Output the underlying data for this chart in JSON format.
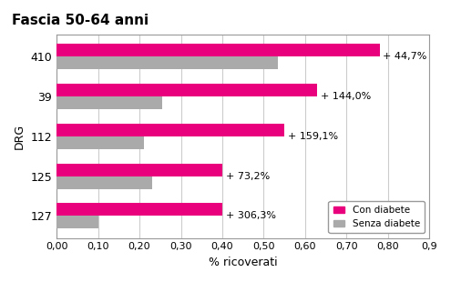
{
  "title": "Fascia 50-64 anni",
  "categories": [
    "410",
    "39",
    "112",
    "125",
    "127"
  ],
  "con_diabete": [
    0.78,
    0.63,
    0.55,
    0.4,
    0.4
  ],
  "senza_diabete": [
    0.535,
    0.255,
    0.21,
    0.23,
    0.1
  ],
  "percentages": [
    "+ 44,7%",
    "+ 144,0%",
    "+ 159,1%",
    "+ 73,2%",
    "+ 306,3%"
  ],
  "color_con": "#E8007D",
  "color_senza": "#AAAAAA",
  "xlabel": "% ricoverati",
  "ylabel": "DRG",
  "xlim": [
    0,
    0.9
  ],
  "xticks": [
    0.0,
    0.1,
    0.2,
    0.3,
    0.4,
    0.5,
    0.6,
    0.7,
    0.8,
    0.9
  ],
  "xtick_labels": [
    "0,00",
    "0,10",
    "0,20",
    "0,30",
    "0,40",
    "0,50",
    "0,60",
    "0,70",
    "0,80",
    "0,9"
  ],
  "legend_con": "Con diabete",
  "legend_senza": "Senza diabete",
  "background_color": "#FFFFFF",
  "grid_color": "#CCCCCC"
}
